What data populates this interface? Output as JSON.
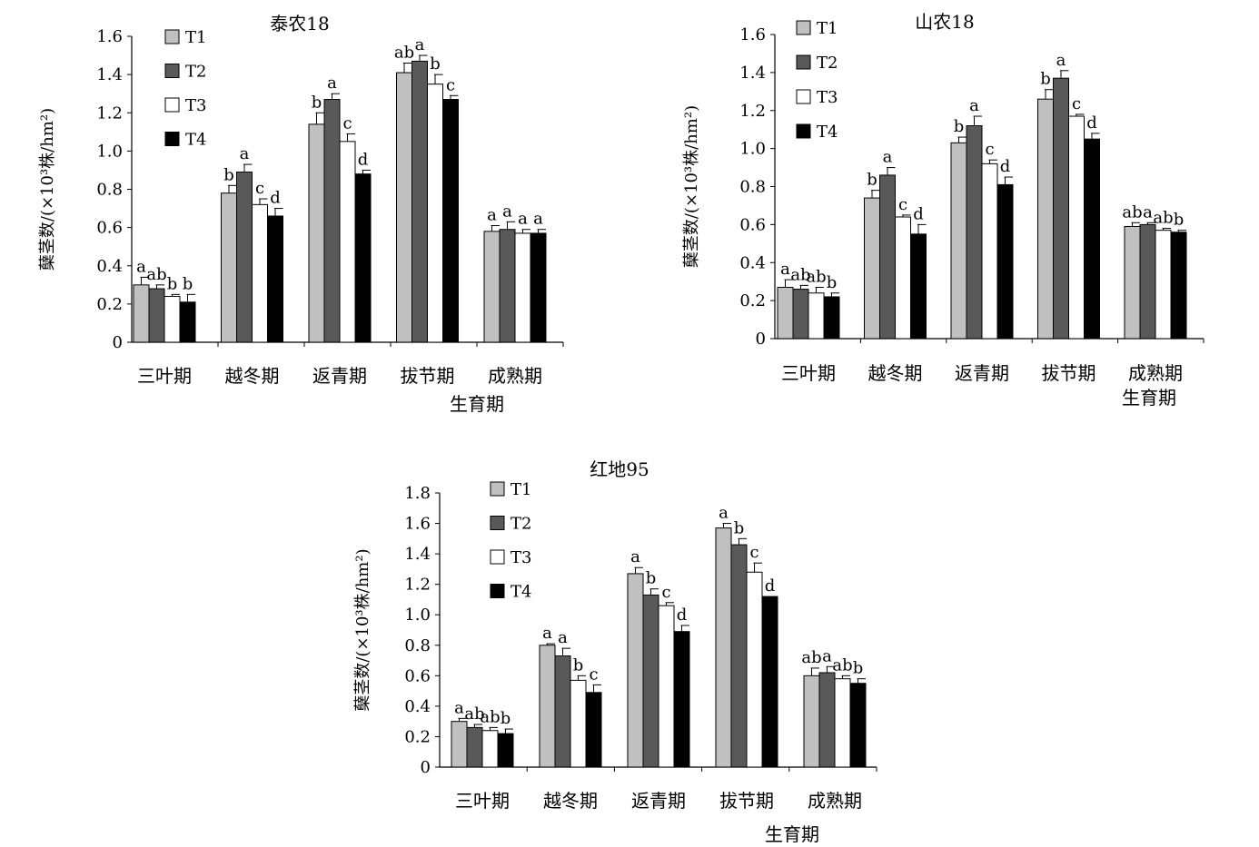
{
  "chart_data": [
    {
      "type": "bar",
      "title": "泰农18",
      "xlabel": "生育期",
      "ylabel": "蘖茎数/(×10³株/hm²)",
      "ylim": [
        0,
        1.6
      ],
      "yticks": [
        "0",
        "0.2",
        "0.4",
        "0.6",
        "0.8",
        "1.0",
        "1.2",
        "1.4",
        "1.6"
      ],
      "categories": [
        "三叶期",
        "越冬期",
        "返青期",
        "拔节期",
        "成熟期"
      ],
      "legend_position": "top-left",
      "series": [
        {
          "name": "T1",
          "color": "#c0c0c0",
          "values": [
            0.3,
            0.78,
            1.14,
            1.41,
            0.58
          ],
          "errors": [
            0.04,
            0.04,
            0.06,
            0.05,
            0.03
          ],
          "letters": [
            "a",
            "b",
            "b",
            "ab",
            "a"
          ]
        },
        {
          "name": "T2",
          "color": "#595959",
          "values": [
            0.28,
            0.89,
            1.27,
            1.47,
            0.59
          ],
          "errors": [
            0.02,
            0.04,
            0.03,
            0.03,
            0.04
          ],
          "letters": [
            "ab",
            "a",
            "a",
            "a",
            "a"
          ]
        },
        {
          "name": "T3",
          "color": "#ffffff",
          "values": [
            0.24,
            0.72,
            1.05,
            1.35,
            0.57
          ],
          "errors": [
            0.01,
            0.03,
            0.04,
            0.05,
            0.02
          ],
          "letters": [
            "b",
            "c",
            "c",
            "b",
            "a"
          ]
        },
        {
          "name": "T4",
          "color": "#000000",
          "values": [
            0.21,
            0.66,
            0.88,
            1.27,
            0.57
          ],
          "errors": [
            0.04,
            0.04,
            0.02,
            0.02,
            0.02
          ],
          "letters": [
            "b",
            "d",
            "d",
            "c",
            "a"
          ]
        }
      ]
    },
    {
      "type": "bar",
      "title": "山农18",
      "xlabel": "生育期",
      "ylabel": "蘖茎数/(×10³株/hm²)",
      "ylim": [
        0,
        1.6
      ],
      "yticks": [
        "0",
        "0.2",
        "0.4",
        "0.6",
        "0.8",
        "1.0",
        "1.2",
        "1.4",
        "1.6"
      ],
      "categories": [
        "三叶期",
        "越冬期",
        "返青期",
        "拔节期",
        "成熟期"
      ],
      "legend_position": "top-left",
      "series": [
        {
          "name": "T1",
          "color": "#c0c0c0",
          "values": [
            0.27,
            0.74,
            1.03,
            1.26,
            0.59
          ],
          "errors": [
            0.04,
            0.04,
            0.03,
            0.05,
            0.02
          ],
          "letters": [
            "a",
            "b",
            "b",
            "b",
            "ab"
          ]
        },
        {
          "name": "T2",
          "color": "#595959",
          "values": [
            0.26,
            0.86,
            1.12,
            1.37,
            0.6
          ],
          "errors": [
            0.02,
            0.04,
            0.05,
            0.04,
            0.01
          ],
          "letters": [
            "ab",
            "a",
            "a",
            "a",
            "a"
          ]
        },
        {
          "name": "T3",
          "color": "#ffffff",
          "values": [
            0.24,
            0.64,
            0.92,
            1.17,
            0.57
          ],
          "errors": [
            0.03,
            0.01,
            0.02,
            0.01,
            0.01
          ],
          "letters": [
            "ab",
            "c",
            "c",
            "c",
            "ab"
          ]
        },
        {
          "name": "T4",
          "color": "#000000",
          "values": [
            0.22,
            0.55,
            0.81,
            1.05,
            0.56
          ],
          "errors": [
            0.02,
            0.05,
            0.04,
            0.03,
            0.01
          ],
          "letters": [
            "b",
            "d",
            "d",
            "d",
            "b"
          ]
        }
      ]
    },
    {
      "type": "bar",
      "title": "红地95",
      "xlabel": "生育期",
      "ylabel": "蘖茎数/(×10³株/hm²)",
      "ylim": [
        0,
        1.8
      ],
      "yticks": [
        "0",
        "0.2",
        "0.4",
        "0.6",
        "0.8",
        "1.0",
        "1.2",
        "1.4",
        "1.6",
        "1.8"
      ],
      "categories": [
        "三叶期",
        "越冬期",
        "返青期",
        "拔节期",
        "成熟期"
      ],
      "legend_position": "top-left",
      "series": [
        {
          "name": "T1",
          "color": "#c0c0c0",
          "values": [
            0.3,
            0.8,
            1.27,
            1.57,
            0.6
          ],
          "errors": [
            0.02,
            0.01,
            0.04,
            0.03,
            0.05
          ],
          "letters": [
            "a",
            "a",
            "a",
            "a",
            "ab"
          ]
        },
        {
          "name": "T2",
          "color": "#595959",
          "values": [
            0.26,
            0.73,
            1.13,
            1.46,
            0.62
          ],
          "errors": [
            0.02,
            0.05,
            0.04,
            0.04,
            0.04
          ],
          "letters": [
            "ab",
            "a",
            "b",
            "b",
            "a"
          ]
        },
        {
          "name": "T3",
          "color": "#ffffff",
          "values": [
            0.24,
            0.57,
            1.06,
            1.28,
            0.58
          ],
          "errors": [
            0.02,
            0.03,
            0.02,
            0.06,
            0.02
          ],
          "letters": [
            "ab",
            "b",
            "c",
            "c",
            "ab"
          ]
        },
        {
          "name": "T4",
          "color": "#000000",
          "values": [
            0.22,
            0.49,
            0.89,
            1.12,
            0.55
          ],
          "errors": [
            0.03,
            0.05,
            0.04,
            0.0,
            0.03
          ],
          "letters": [
            "b",
            "c",
            "d",
            "d",
            "b"
          ]
        }
      ]
    }
  ]
}
